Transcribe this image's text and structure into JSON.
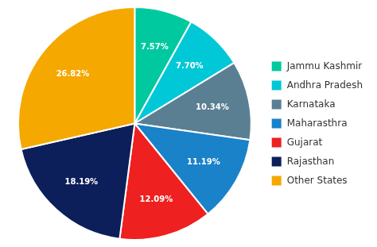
{
  "chart_data": {
    "type": "pie",
    "categories": [
      "Jammu Kashmir",
      "Andhra Pradesh",
      "Karnataka",
      "Maharasthra",
      "Gujarat",
      "Rajasthan",
      "Other States"
    ],
    "values": [
      7.57,
      7.7,
      10.34,
      11.19,
      12.09,
      18.19,
      26.82
    ],
    "value_labels": [
      "7.57%",
      "7.70%",
      "10.34%",
      "11.19%",
      "12.09%",
      "18.19%",
      "26.82%"
    ],
    "colors": [
      "#00c9a0",
      "#00c8d7",
      "#5a7f92",
      "#1a82c8",
      "#ee2020",
      "#0c1f5a",
      "#f5a800"
    ],
    "data_labels": true,
    "legend": "right"
  }
}
